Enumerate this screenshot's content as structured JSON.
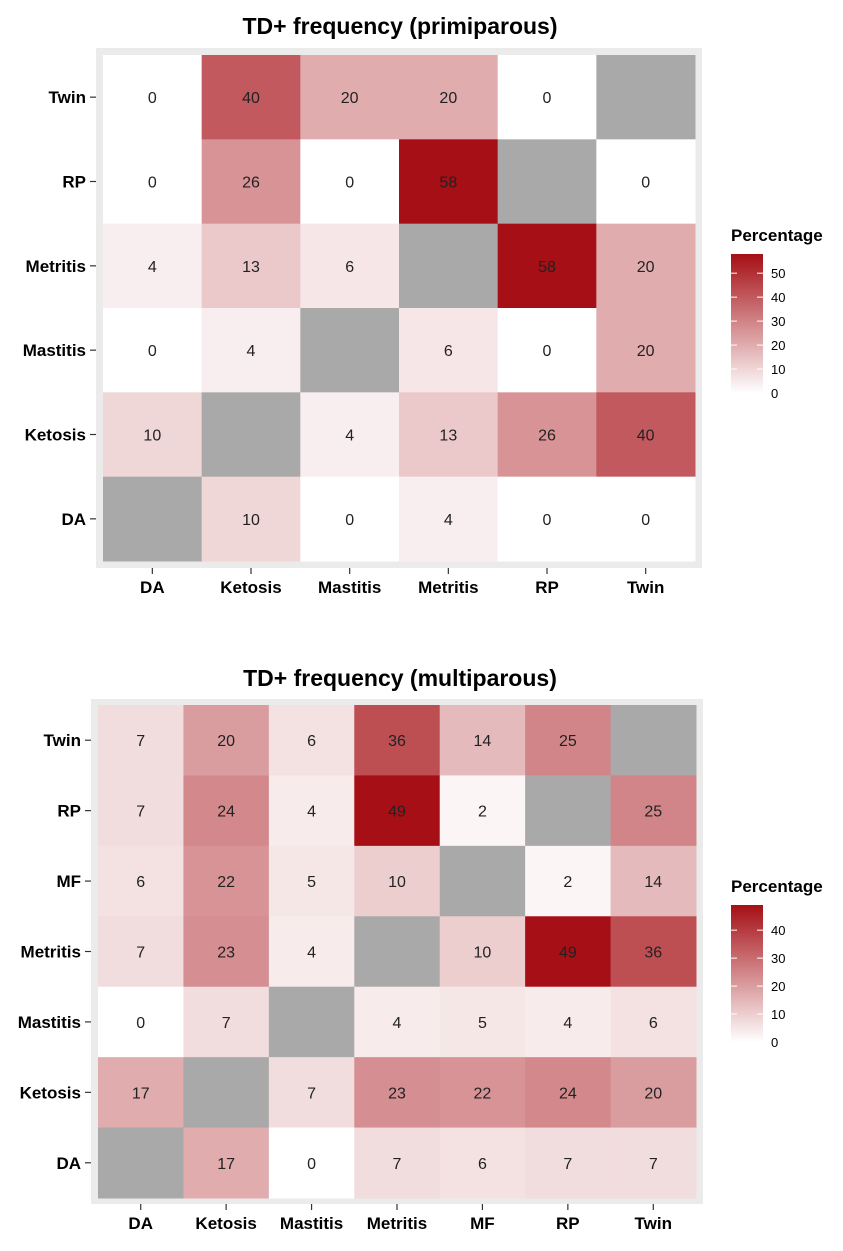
{
  "chart_data": [
    {
      "type": "heatmap",
      "title": "TD+ frequency (primiparous)",
      "xlabel": "",
      "ylabel": "",
      "x_categories": [
        "DA",
        "Ketosis",
        "Mastitis",
        "Metritis",
        "RP",
        "Twin"
      ],
      "y_categories": [
        "Twin",
        "RP",
        "Metritis",
        "Mastitis",
        "Ketosis",
        "DA"
      ],
      "values": [
        [
          0,
          40,
          20,
          20,
          0,
          null
        ],
        [
          0,
          26,
          0,
          58,
          null,
          0
        ],
        [
          4,
          13,
          6,
          null,
          58,
          20
        ],
        [
          0,
          4,
          null,
          6,
          0,
          20
        ],
        [
          10,
          null,
          4,
          13,
          26,
          40
        ],
        [
          null,
          10,
          0,
          4,
          0,
          0
        ]
      ],
      "missing_color": "#a9a9a9",
      "colorscale": {
        "low": "#ffffff",
        "high": "#a50f15",
        "min": 0,
        "max": 58
      },
      "legend": {
        "title": "Percentage",
        "ticks": [
          0,
          10,
          20,
          30,
          40,
          50
        ],
        "placement": "right"
      },
      "panel_background": "#ebebeb"
    },
    {
      "type": "heatmap",
      "title": "TD+ frequency (multiparous)",
      "xlabel": "",
      "ylabel": "",
      "x_categories": [
        "DA",
        "Ketosis",
        "Mastitis",
        "Metritis",
        "MF",
        "RP",
        "Twin"
      ],
      "y_categories": [
        "Twin",
        "RP",
        "MF",
        "Metritis",
        "Mastitis",
        "Ketosis",
        "DA"
      ],
      "values": [
        [
          7,
          20,
          6,
          36,
          14,
          25,
          null
        ],
        [
          7,
          24,
          4,
          49,
          2,
          null,
          25
        ],
        [
          6,
          22,
          5,
          10,
          null,
          2,
          14
        ],
        [
          7,
          23,
          4,
          null,
          10,
          49,
          36
        ],
        [
          0,
          7,
          null,
          4,
          5,
          4,
          6
        ],
        [
          17,
          null,
          7,
          23,
          22,
          24,
          20
        ],
        [
          null,
          17,
          0,
          7,
          6,
          7,
          7
        ]
      ],
      "missing_color": "#a9a9a9",
      "colorscale": {
        "low": "#ffffff",
        "high": "#a50f15",
        "min": 0,
        "max": 49
      },
      "legend": {
        "title": "Percentage",
        "ticks": [
          0,
          10,
          20,
          30,
          40
        ],
        "placement": "right"
      },
      "panel_background": "#ebebeb"
    }
  ]
}
